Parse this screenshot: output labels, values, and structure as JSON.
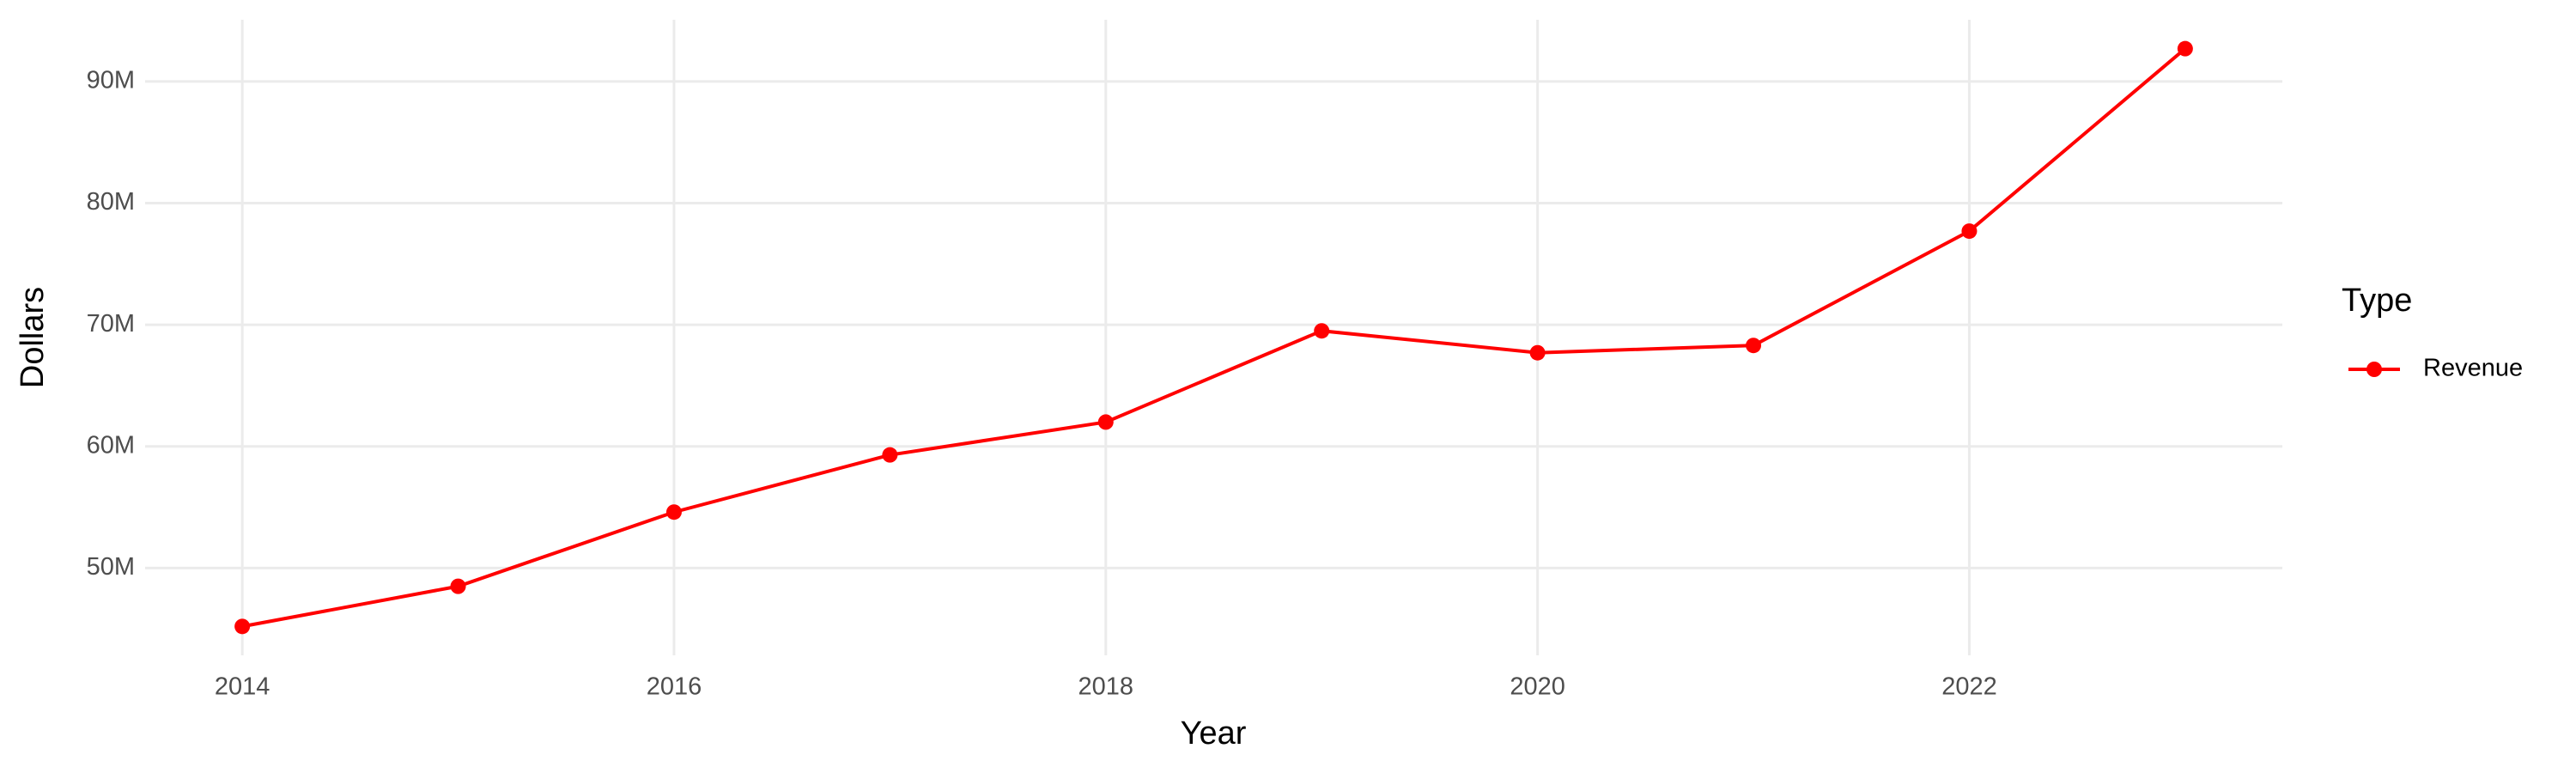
{
  "chart_data": {
    "type": "line",
    "x_label": "Year",
    "y_label": "Dollars",
    "legend_title": "Type",
    "x": [
      2014,
      2015,
      2016,
      2017,
      2018,
      2019,
      2020,
      2021,
      2022,
      2023
    ],
    "series": [
      {
        "name": "Revenue",
        "color": "#ff0000",
        "values": [
          45200000,
          48500000,
          54600000,
          59300000,
          62000000,
          69500000,
          67700000,
          68300000,
          77700000,
          92700000
        ]
      }
    ],
    "xlim": [
      2013.55,
      2023.45
    ],
    "xticks": [
      2014,
      2016,
      2018,
      2020,
      2022
    ],
    "ylim": [
      42825000,
      95075000
    ],
    "yticks": [
      {
        "value": 50000000,
        "label": "50M"
      },
      {
        "value": 60000000,
        "label": "60M"
      },
      {
        "value": 70000000,
        "label": "70M"
      },
      {
        "value": 80000000,
        "label": "80M"
      },
      {
        "value": 90000000,
        "label": "90M"
      }
    ],
    "grid": true,
    "legend": "right"
  }
}
